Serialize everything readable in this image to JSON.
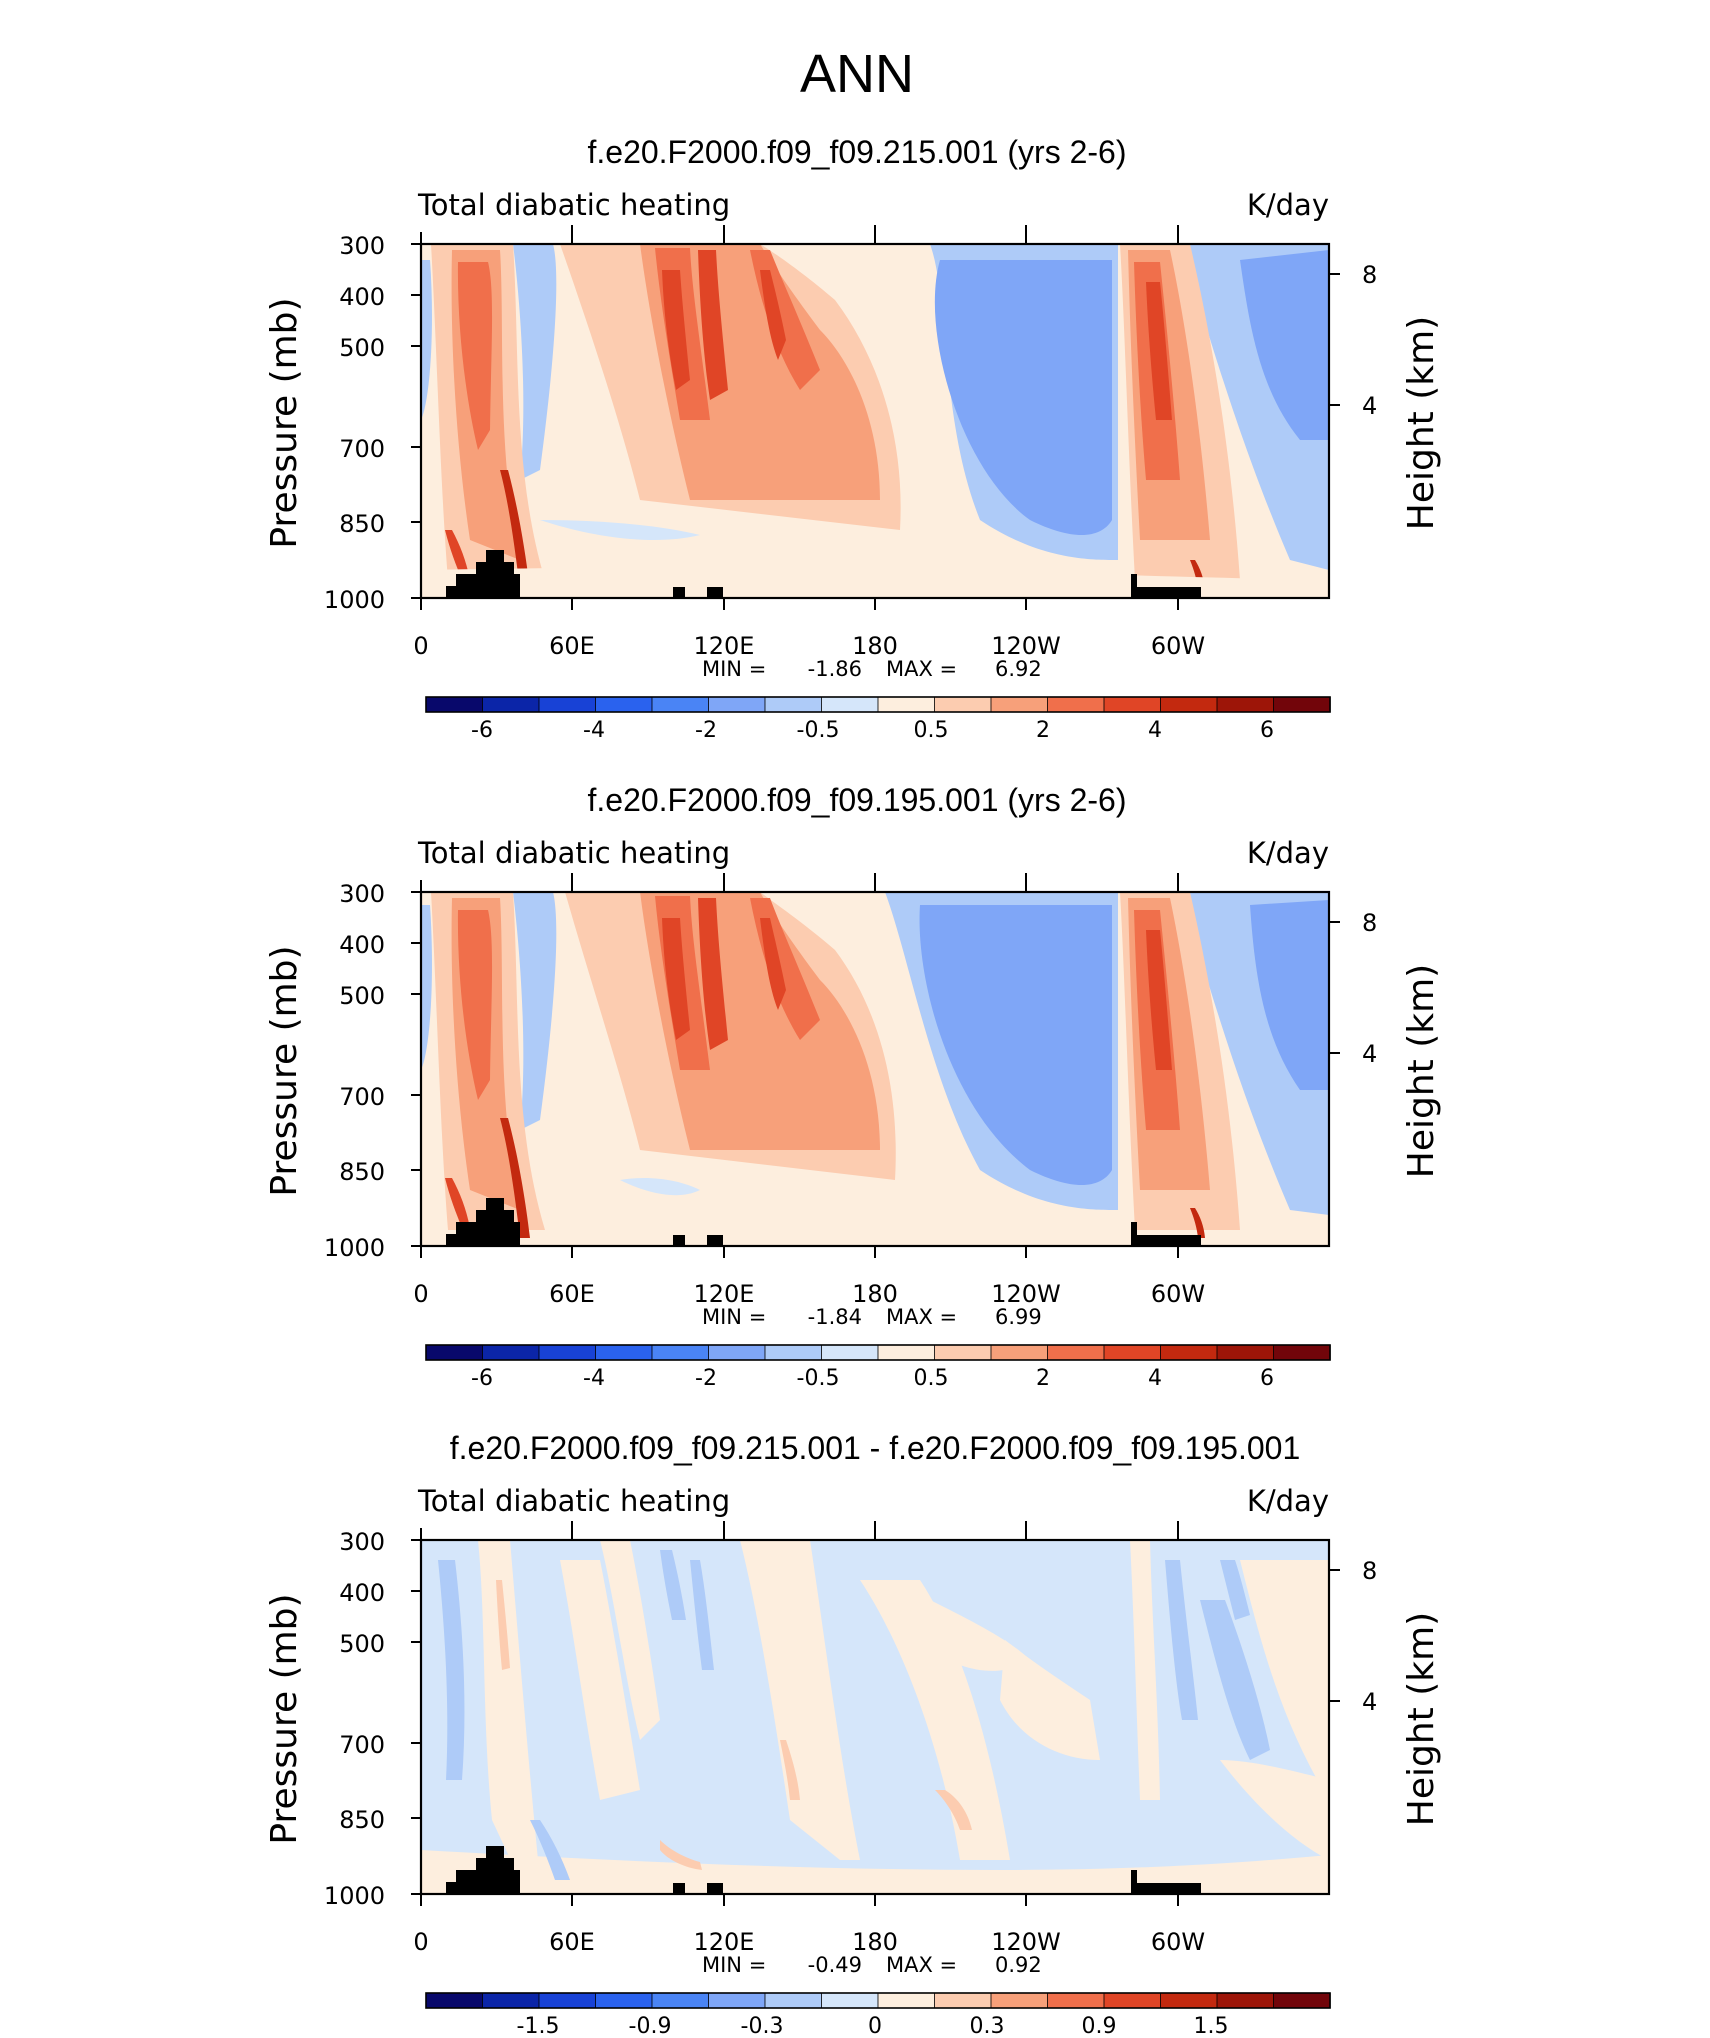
{
  "figure": {
    "title": "ANN"
  },
  "colors": {
    "levels": [
      "#08086b",
      "#0b25a8",
      "#1842d6",
      "#2a62ee",
      "#4a84f5",
      "#7fa6f7",
      "#aecbf8",
      "#d5e6fa",
      "#fdeede",
      "#fcccb0",
      "#f7a07a",
      "#f06f4b",
      "#e04526",
      "#c3290f",
      "#9d1508",
      "#72050a"
    ],
    "land": "#000000",
    "axis": "#000000"
  },
  "panels": [
    {
      "title": "f.e20.F2000.f09_f09.215.001 (yrs 2-6)",
      "left_label": "Total diabatic heating",
      "right_label": "K/day",
      "ylabel": "Pressure (mb)",
      "ylabel_right": "Height (km)",
      "y_ticks": [
        "300",
        "400",
        "500",
        "700",
        "850",
        "1000"
      ],
      "y_ticks_right": [
        "8",
        "4"
      ],
      "x_ticks": [
        "0",
        "60E",
        "120E",
        "180",
        "120W",
        "60W"
      ],
      "min_label": "MIN =",
      "min_value": "-1.86",
      "max_label": "MAX =",
      "max_value": "6.92",
      "colorbar_labels": [
        "-6",
        "-4",
        "-2",
        "-0.5",
        "0.5",
        "2",
        "4",
        "6"
      ]
    },
    {
      "title": "f.e20.F2000.f09_f09.195.001 (yrs 2-6)",
      "left_label": "Total diabatic heating",
      "right_label": "K/day",
      "ylabel": "Pressure (mb)",
      "ylabel_right": "Height (km)",
      "y_ticks": [
        "300",
        "400",
        "500",
        "700",
        "850",
        "1000"
      ],
      "y_ticks_right": [
        "8",
        "4"
      ],
      "x_ticks": [
        "0",
        "60E",
        "120E",
        "180",
        "120W",
        "60W"
      ],
      "min_label": "MIN =",
      "min_value": "-1.84",
      "max_label": "MAX =",
      "max_value": "6.99",
      "colorbar_labels": [
        "-6",
        "-4",
        "-2",
        "-0.5",
        "0.5",
        "2",
        "4",
        "6"
      ]
    },
    {
      "title": "f.e20.F2000.f09_f09.215.001 - f.e20.F2000.f09_f09.195.001",
      "left_label": "Total diabatic heating",
      "right_label": "K/day",
      "ylabel": "Pressure (mb)",
      "ylabel_right": "Height (km)",
      "y_ticks": [
        "300",
        "400",
        "500",
        "700",
        "850",
        "1000"
      ],
      "y_ticks_right": [
        "8",
        "4"
      ],
      "x_ticks": [
        "0",
        "60E",
        "120E",
        "180",
        "120W",
        "60W"
      ],
      "min_label": "MIN =",
      "min_value": "-0.49",
      "max_label": "MAX =",
      "max_value": "0.92",
      "colorbar_labels": [
        "-1.5",
        "-0.9",
        "-0.3",
        "0",
        "0.3",
        "0.9",
        "1.5"
      ]
    }
  ],
  "chart_data": [
    {
      "type": "heatmap",
      "title": "f.e20.F2000.f09_f09.215.001 (yrs 2-6)",
      "field": "Total diabatic heating",
      "units": "K/day",
      "x_axis": {
        "label": "",
        "ticks": [
          "0",
          "60E",
          "120E",
          "180",
          "120W",
          "60W"
        ],
        "range_deg_east": [
          0,
          360
        ]
      },
      "y_axis": {
        "label": "Pressure (mb)",
        "ticks": [
          300,
          400,
          500,
          700,
          850,
          1000
        ],
        "range": [
          1000,
          300
        ]
      },
      "y_axis_right": {
        "label": "Height (km)",
        "ticks": [
          8,
          4
        ]
      },
      "min": -1.86,
      "max": 6.92,
      "contour_levels": [
        -6,
        -5,
        -4,
        -3,
        -2,
        -1,
        -0.5,
        0,
        0.5,
        1,
        2,
        3,
        4,
        5,
        6
      ],
      "features": [
        {
          "lon": 30,
          "p": 520,
          "value": 2.5
        },
        {
          "lon": 38,
          "p": 880,
          "value": 5.0
        },
        {
          "lon": 15,
          "p": 940,
          "value": 3.0
        },
        {
          "lon": 100,
          "p": 470,
          "value": 5.5
        },
        {
          "lon": 112,
          "p": 470,
          "value": 5.0
        },
        {
          "lon": 138,
          "p": 500,
          "value": 4.0
        },
        {
          "lon": 165,
          "p": 600,
          "value": 1.5
        },
        {
          "lon": 240,
          "p": 560,
          "value": -1.5
        },
        {
          "lon": 292,
          "p": 500,
          "value": 5.5
        },
        {
          "lon": 330,
          "p": 450,
          "value": -1.2
        }
      ]
    },
    {
      "type": "heatmap",
      "title": "f.e20.F2000.f09_f09.195.001 (yrs 2-6)",
      "field": "Total diabatic heating",
      "units": "K/day",
      "x_axis": {
        "label": "",
        "ticks": [
          "0",
          "60E",
          "120E",
          "180",
          "120W",
          "60W"
        ],
        "range_deg_east": [
          0,
          360
        ]
      },
      "y_axis": {
        "label": "Pressure (mb)",
        "ticks": [
          300,
          400,
          500,
          700,
          850,
          1000
        ],
        "range": [
          1000,
          300
        ]
      },
      "y_axis_right": {
        "label": "Height (km)",
        "ticks": [
          8,
          4
        ]
      },
      "min": -1.84,
      "max": 6.99,
      "contour_levels": [
        -6,
        -5,
        -4,
        -3,
        -2,
        -1,
        -0.5,
        0,
        0.5,
        1,
        2,
        3,
        4,
        5,
        6
      ],
      "features": [
        {
          "lon": 30,
          "p": 520,
          "value": 2.5
        },
        {
          "lon": 38,
          "p": 880,
          "value": 5.0
        },
        {
          "lon": 15,
          "p": 940,
          "value": 3.0
        },
        {
          "lon": 100,
          "p": 470,
          "value": 5.5
        },
        {
          "lon": 112,
          "p": 470,
          "value": 5.0
        },
        {
          "lon": 138,
          "p": 480,
          "value": 4.0
        },
        {
          "lon": 165,
          "p": 600,
          "value": 1.5
        },
        {
          "lon": 240,
          "p": 560,
          "value": -1.5
        },
        {
          "lon": 292,
          "p": 520,
          "value": 5.5
        },
        {
          "lon": 332,
          "p": 470,
          "value": -1.2
        }
      ]
    },
    {
      "type": "heatmap",
      "title": "f.e20.F2000.f09_f09.215.001 - f.e20.F2000.f09_f09.195.001",
      "field": "Total diabatic heating",
      "units": "K/day",
      "x_axis": {
        "label": "",
        "ticks": [
          "0",
          "60E",
          "120E",
          "180",
          "120W",
          "60W"
        ],
        "range_deg_east": [
          0,
          360
        ]
      },
      "y_axis": {
        "label": "Pressure (mb)",
        "ticks": [
          300,
          400,
          500,
          700,
          850,
          1000
        ],
        "range": [
          1000,
          300
        ]
      },
      "y_axis_right": {
        "label": "Height (km)",
        "ticks": [
          8,
          4
        ]
      },
      "min": -0.49,
      "max": 0.92,
      "contour_levels": [
        -1.8,
        -1.5,
        -1.2,
        -0.9,
        -0.6,
        -0.3,
        -0.1,
        0,
        0.1,
        0.3,
        0.6,
        0.9,
        1.2,
        1.5,
        1.8
      ],
      "features": [
        {
          "lon": 8,
          "p": 600,
          "value": -0.2
        },
        {
          "lon": 28,
          "p": 620,
          "value": 0.1
        },
        {
          "lon": 100,
          "p": 420,
          "value": -0.3
        },
        {
          "lon": 118,
          "p": 450,
          "value": -0.2
        },
        {
          "lon": 140,
          "p": 640,
          "value": 0.15
        },
        {
          "lon": 205,
          "p": 880,
          "value": 0.3
        },
        {
          "lon": 295,
          "p": 520,
          "value": -0.25
        },
        {
          "lon": 325,
          "p": 600,
          "value": -0.2
        },
        {
          "lon": 345,
          "p": 600,
          "value": 0.1
        }
      ]
    }
  ]
}
